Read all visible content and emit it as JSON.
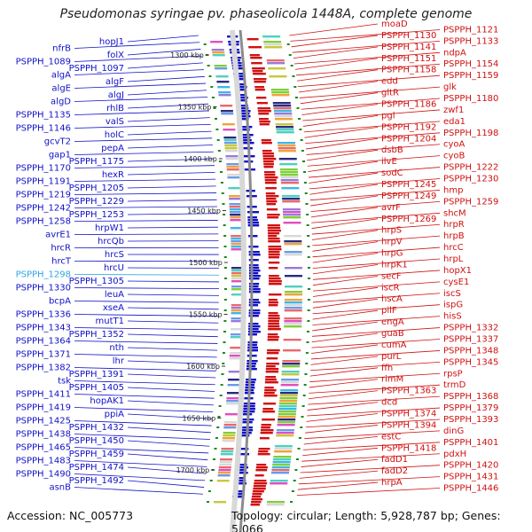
{
  "title": "Pseudomonas syringae pv. phaseolicola 1448A, complete genome",
  "accession": "Accession: NC_005773",
  "summary": "Topology: circular; Length: 5,928,787 bp; Genes: 5,066",
  "colors": {
    "left_strand": "#1010c8",
    "right_strand": "#d01010",
    "highlight": "#2aa6e6",
    "backbone": "#999999"
  },
  "scale_ticks": [
    "1300 kbp",
    "1350 kbp",
    "1400 kbp",
    "1450 kbp",
    "1500 kbp",
    "1550 kbp",
    "1600 kbp",
    "1650 kbp",
    "1700 kbp"
  ],
  "left_labels": [
    "hopJ1",
    "nfrB",
    "folX",
    "PSPPH_1089",
    "PSPPH_1097",
    "algA",
    "algF",
    "algE",
    "algJ",
    "algD",
    "rhlB",
    "PSPPH_1135",
    "valS",
    "PSPPH_1146",
    "holC",
    "gcvT2",
    "pepA",
    "gap1",
    "PSPPH_1175",
    "PSPPH_1170",
    "hexR",
    "PSPPH_1191",
    "PSPPH_1205",
    "PSPPH_1219",
    "PSPPH_1229",
    "PSPPH_1242",
    "PSPPH_1253",
    "PSPPH_1258",
    "hrpW1",
    "avrE1",
    "hrcQb",
    "hrcR",
    "hrcS",
    "hrcT",
    "hrcU",
    "PSPPH_1298",
    "PSPPH_1305",
    "PSPPH_1330",
    "leuA",
    "bcpA",
    "xseA",
    "PSPPH_1336",
    "mutT1",
    "PSPPH_1343",
    "PSPPH_1352",
    "PSPPH_1364",
    "nth",
    "PSPPH_1371",
    "lhr",
    "PSPPH_1382",
    "PSPPH_1391",
    "tsk",
    "PSPPH_1405",
    "PSPPH_1411",
    "hopAK1",
    "PSPPH_1419",
    "ppiA",
    "PSPPH_1425",
    "PSPPH_1432",
    "PSPPH_1438",
    "PSPPH_1450",
    "PSPPH_1465",
    "PSPPH_1459",
    "PSPPH_1483",
    "PSPPH_1474",
    "PSPPH_1490",
    "PSPPH_1492",
    "asnB"
  ],
  "right_labels": [
    "moaD",
    "PSPPH_1121",
    "PSPPH_1130",
    "PSPPH_1133",
    "PSPPH_1141",
    "ndpA",
    "PSPPH_1151",
    "PSPPH_1154",
    "PSPPH_1158",
    "PSPPH_1159",
    "edd",
    "glk",
    "gltR",
    "PSPPH_1180",
    "PSPPH_1186",
    "zwf1",
    "pgl",
    "eda1",
    "PSPPH_1192",
    "PSPPH_1198",
    "PSPPH_1204",
    "cyoA",
    "dsbB",
    "cyoB",
    "ilvE",
    "PSPPH_1222",
    "sodC",
    "PSPPH_1230",
    "PSPPH_1245",
    "hmp",
    "PSPPH_1249",
    "PSPPH_1259",
    "avrF",
    "shcM",
    "PSPPH_1269",
    "hrpR",
    "hrpS",
    "hrpB",
    "hrpV",
    "hrcC",
    "hrpG",
    "hrpL",
    "hrpK1",
    "hopX1",
    "secF",
    "cysE1",
    "iscR",
    "iscS",
    "hscA",
    "ispG",
    "pilF",
    "hisS",
    "engA",
    "PSPPH_1332",
    "guaB",
    "PSPPH_1337",
    "cumA",
    "PSPPH_1348",
    "purL",
    "PSPPH_1345",
    "ffh",
    "rpsP",
    "rimM",
    "trmD",
    "PSPPH_1363",
    "PSPPH_1368",
    "dcd",
    "PSPPH_1379",
    "PSPPH_1374",
    "PSPPH_1393",
    "PSPPH_1394",
    "dinG",
    "estC",
    "PSPPH_1401",
    "PSPPH_1418",
    "pdxH",
    "fadD1",
    "PSPPH_1420",
    "fadD2",
    "PSPPH_1431",
    "hrpA",
    "PSPPH_1446"
  ]
}
